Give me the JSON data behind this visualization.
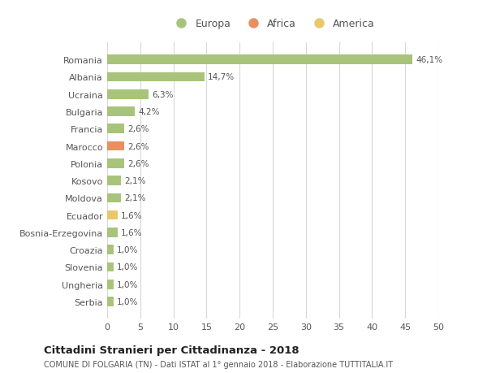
{
  "categories": [
    "Romania",
    "Albania",
    "Ucraina",
    "Bulgaria",
    "Francia",
    "Marocco",
    "Polonia",
    "Kosovo",
    "Moldova",
    "Ecuador",
    "Bosnia-Erzegovina",
    "Croazia",
    "Slovenia",
    "Ungheria",
    "Serbia"
  ],
  "values": [
    46.1,
    14.7,
    6.3,
    4.2,
    2.6,
    2.6,
    2.6,
    2.1,
    2.1,
    1.6,
    1.6,
    1.0,
    1.0,
    1.0,
    1.0
  ],
  "labels": [
    "46,1%",
    "14,7%",
    "6,3%",
    "4,2%",
    "2,6%",
    "2,6%",
    "2,6%",
    "2,1%",
    "2,1%",
    "1,6%",
    "1,6%",
    "1,0%",
    "1,0%",
    "1,0%",
    "1,0%"
  ],
  "continent": [
    "Europa",
    "Europa",
    "Europa",
    "Europa",
    "Europa",
    "Africa",
    "Europa",
    "Europa",
    "Europa",
    "America",
    "Europa",
    "Europa",
    "Europa",
    "Europa",
    "Europa"
  ],
  "colors": {
    "Europa": "#a8c47a",
    "Africa": "#e89060",
    "America": "#e8c86a"
  },
  "legend_items": [
    {
      "label": "Europa",
      "color": "#a8c47a"
    },
    {
      "label": "Africa",
      "color": "#e89060"
    },
    {
      "label": "America",
      "color": "#e8c86a"
    }
  ],
  "xlim": [
    0,
    50
  ],
  "xticks": [
    0,
    5,
    10,
    15,
    20,
    25,
    30,
    35,
    40,
    45,
    50
  ],
  "title": "Cittadini Stranieri per Cittadinanza - 2018",
  "subtitle": "COMUNE DI FOLGARIA (TN) - Dati ISTAT al 1° gennaio 2018 - Elaborazione TUTTITALIA.IT",
  "background_color": "#ffffff",
  "grid_color": "#d8d8d8",
  "bar_height": 0.55
}
